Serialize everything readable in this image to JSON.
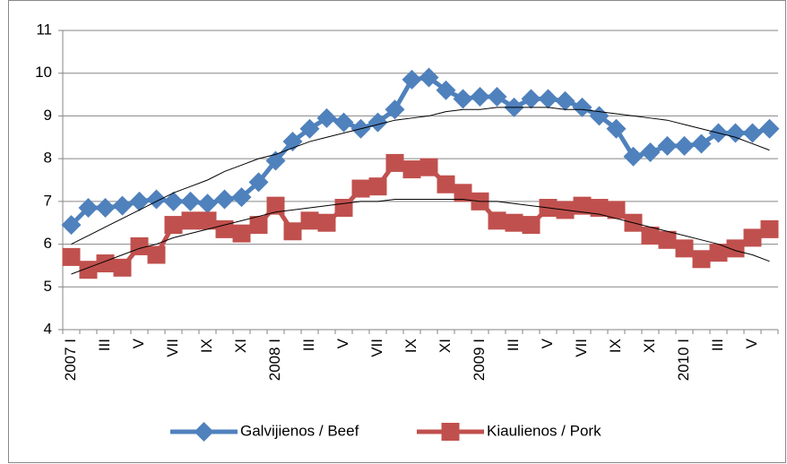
{
  "chart_data": {
    "type": "line",
    "categories": [
      "2007 I",
      null,
      "III",
      null,
      "V",
      null,
      "VII",
      null,
      "IX",
      null,
      "XI",
      null,
      "2008 I",
      null,
      "III",
      null,
      "V",
      null,
      "VII",
      null,
      "IX",
      null,
      "XI",
      null,
      "2009 I",
      null,
      "III",
      null,
      "V",
      null,
      "VII",
      null,
      "IX",
      null,
      "XI",
      null,
      "2010 I",
      null,
      "III",
      null,
      "V",
      null
    ],
    "series": [
      {
        "name": "Galvijienos / Beef",
        "color": "#4f81bd",
        "marker": "diamond",
        "values": [
          6.45,
          6.85,
          6.85,
          6.9,
          7.0,
          7.05,
          7.0,
          7.0,
          6.95,
          7.05,
          7.1,
          7.45,
          7.95,
          8.4,
          8.7,
          8.95,
          8.85,
          8.7,
          8.85,
          9.15,
          9.85,
          9.9,
          9.6,
          9.4,
          9.45,
          9.45,
          9.2,
          9.4,
          9.4,
          9.35,
          9.2,
          9.0,
          8.7,
          8.05,
          8.15,
          8.3,
          8.3,
          8.35,
          8.6,
          8.6,
          8.6,
          8.7
        ],
        "trend": [
          6.0,
          6.2,
          6.4,
          6.6,
          6.8,
          7.0,
          7.2,
          7.35,
          7.5,
          7.7,
          7.85,
          8.0,
          8.1,
          8.25,
          8.4,
          8.5,
          8.6,
          8.7,
          8.8,
          8.9,
          8.95,
          9.0,
          9.1,
          9.15,
          9.15,
          9.2,
          9.2,
          9.2,
          9.2,
          9.15,
          9.15,
          9.1,
          9.05,
          9.0,
          8.95,
          8.9,
          8.8,
          8.7,
          8.6,
          8.5,
          8.35,
          8.2
        ]
      },
      {
        "name": "Kiaulienos / Pork",
        "color": "#c0504d",
        "marker": "square",
        "values": [
          5.7,
          5.4,
          5.55,
          5.45,
          5.95,
          5.75,
          6.45,
          6.55,
          6.55,
          6.35,
          6.25,
          6.45,
          6.9,
          6.3,
          6.55,
          6.5,
          6.85,
          7.3,
          7.35,
          7.9,
          7.75,
          7.8,
          7.4,
          7.2,
          7.0,
          6.55,
          6.5,
          6.45,
          6.85,
          6.8,
          6.9,
          6.85,
          6.8,
          6.5,
          6.2,
          6.1,
          5.9,
          5.65,
          5.8,
          5.9,
          6.15,
          6.35
        ],
        "trend": [
          5.3,
          5.45,
          5.6,
          5.75,
          5.9,
          6.0,
          6.15,
          6.25,
          6.35,
          6.45,
          6.55,
          6.65,
          6.75,
          6.8,
          6.85,
          6.9,
          6.95,
          7.0,
          7.0,
          7.05,
          7.05,
          7.05,
          7.05,
          7.05,
          7.0,
          7.0,
          6.95,
          6.9,
          6.85,
          6.8,
          6.75,
          6.7,
          6.6,
          6.5,
          6.4,
          6.3,
          6.2,
          6.1,
          6.0,
          5.85,
          5.75,
          5.6
        ]
      }
    ],
    "ylim": [
      4,
      11
    ],
    "yticks": [
      4,
      5,
      6,
      7,
      8,
      9,
      10,
      11
    ],
    "grid": true,
    "legend": "bottom"
  }
}
